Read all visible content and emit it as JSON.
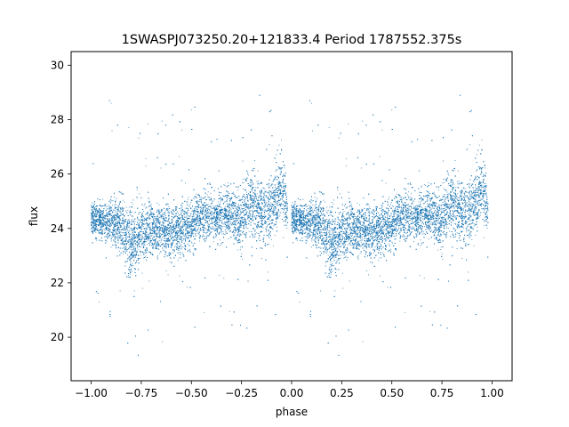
{
  "chart_data": {
    "type": "scatter",
    "title": "1SWASPJ073250.20+121833.4 Period 1787552.375s",
    "xlabel": "phase",
    "ylabel": "flux",
    "xlim": [
      -1.1,
      1.1
    ],
    "ylim": [
      18.4,
      30.5
    ],
    "xticks": [
      -1.0,
      -0.75,
      -0.5,
      -0.25,
      0.0,
      0.25,
      0.5,
      0.75,
      1.0
    ],
    "xtick_labels": [
      "−1.00",
      "−0.75",
      "−0.50",
      "−0.25",
      "0.00",
      "0.25",
      "0.50",
      "0.75",
      "1.00"
    ],
    "yticks": [
      20,
      22,
      24,
      26,
      28,
      30
    ],
    "ytick_labels": [
      "20",
      "22",
      "24",
      "26",
      "28",
      "30"
    ],
    "grid": false,
    "legend": "none",
    "marker_color": "#1f77b4",
    "series": [
      {
        "profile_phase": [
          0.0,
          0.04,
          0.08,
          0.12,
          0.16,
          0.2,
          0.25,
          0.3,
          0.35,
          0.4,
          0.45,
          0.5,
          0.55,
          0.6,
          0.65,
          0.7,
          0.75,
          0.8,
          0.85,
          0.9,
          0.95,
          0.98
        ],
        "profile_median_flux": [
          24.3,
          24.3,
          24.2,
          24.3,
          24.0,
          23.4,
          23.8,
          24.0,
          23.9,
          23.9,
          24.0,
          24.1,
          24.4,
          24.4,
          24.5,
          24.5,
          24.3,
          25.0,
          24.5,
          24.6,
          25.6,
          24.6
        ],
        "profile_spread": [
          0.6,
          0.5,
          0.7,
          0.8,
          1.0,
          1.2,
          1.0,
          0.9,
          0.9,
          0.8,
          0.8,
          0.8,
          0.9,
          0.8,
          0.8,
          0.8,
          1.0,
          1.2,
          1.0,
          1.0,
          1.2,
          0.9
        ],
        "phase_range": [
          -1.0,
          0.98
        ],
        "flux_range": [
          19.0,
          29.9
        ]
      }
    ]
  }
}
